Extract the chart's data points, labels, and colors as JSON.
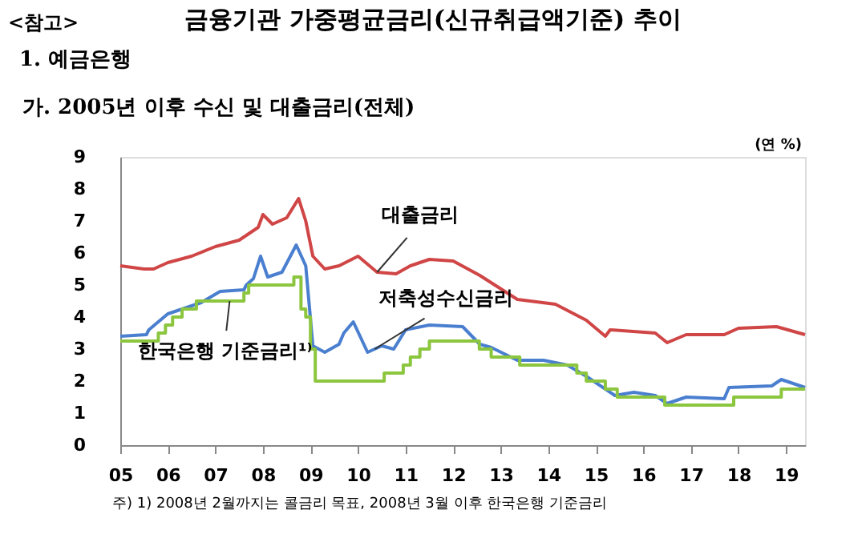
{
  "chart_data": {
    "type": "line",
    "title": "금융기관 가중평균금리(신규취급액기준) 추이",
    "subtitle": "1. 예금은행",
    "ylabel": "(연 %)",
    "annotations": [
      "<참고>",
      "가. 2005년 이후 수신 및 대출금리(전체)",
      {
        "text": "대출금리",
        "x": 2010.4,
        "y": 5.4
      },
      {
        "text": "저축성수신금리",
        "x": 2010.35,
        "y": 3.0
      },
      {
        "text": "한국은행 기준금리¹⁾",
        "x": 2007.3,
        "y": 4.5
      },
      "주) 1) 2008년 2월까지는 콜금리 목표, 2008년 3월 이후 한국은행 기준금리"
    ],
    "xlim": [
      2005,
      2019.4
    ],
    "xticks": [
      {
        "value": 2005,
        "label": "05"
      },
      {
        "value": 2006,
        "label": "06"
      },
      {
        "value": 2007,
        "label": "07"
      },
      {
        "value": 2008,
        "label": "08"
      },
      {
        "value": 2009,
        "label": "09"
      },
      {
        "value": 2010,
        "label": "10"
      },
      {
        "value": 2011,
        "label": "11"
      },
      {
        "value": 2012,
        "label": "12"
      },
      {
        "value": 2013,
        "label": "13"
      },
      {
        "value": 2014,
        "label": "14"
      },
      {
        "value": 2015,
        "label": "15"
      },
      {
        "value": 2016,
        "label": "16"
      },
      {
        "value": 2017,
        "label": "17"
      },
      {
        "value": 2018,
        "label": "18"
      },
      {
        "value": 2019,
        "label": "19"
      }
    ],
    "ylim": [
      0,
      9
    ],
    "yticks": [
      0,
      1,
      2,
      3,
      4,
      5,
      6,
      7,
      8,
      9
    ],
    "grid": false,
    "marker": "none",
    "line_style": "solid",
    "series": [
      {
        "color": "#d04545",
        "x": [
          2005,
          2005.5,
          2005.7,
          2006,
          2006.5,
          2007,
          2007.5,
          2007.9,
          2008,
          2008.2,
          2008.5,
          2008.75,
          2008.9,
          2009.05,
          2009.3,
          2009.6,
          2010,
          2010.4,
          2010.8,
          2011.1,
          2011.5,
          2012,
          2012.56,
          2013.35,
          2014.15,
          2014.8,
          2015.2,
          2015.3,
          2016.25,
          2016.5,
          2016.9,
          2017.7,
          2018,
          2018.8,
          2019.4
        ],
        "values": [
          5.6,
          5.5,
          5.5,
          5.7,
          5.9,
          6.2,
          6.4,
          6.8,
          7.2,
          6.9,
          7.1,
          7.7,
          7.0,
          5.9,
          5.5,
          5.6,
          5.9,
          5.4,
          5.35,
          5.6,
          5.8,
          5.75,
          5.3,
          4.55,
          4.4,
          3.9,
          3.4,
          3.6,
          3.5,
          3.2,
          3.45,
          3.45,
          3.65,
          3.7,
          3.45
        ]
      },
      {
        "color": "#4a7fd0",
        "x": [
          2005,
          2005.55,
          2005.6,
          2006,
          2006.7,
          2007.1,
          2007.6,
          2007.65,
          2007.8,
          2007.95,
          2008.1,
          2008.4,
          2008.7,
          2008.9,
          2009.05,
          2009.3,
          2009.6,
          2009.7,
          2009.9,
          2010.2,
          2010.5,
          2010.75,
          2011,
          2011.5,
          2012.2,
          2012.56,
          2012.8,
          2013.35,
          2013.9,
          2014.4,
          2014.8,
          2015.4,
          2015.8,
          2016.25,
          2016.5,
          2016.9,
          2017.7,
          2017.8,
          2018.7,
          2018.9,
          2019.4
        ],
        "values": [
          3.4,
          3.45,
          3.6,
          4.1,
          4.45,
          4.8,
          4.85,
          5.0,
          5.2,
          5.9,
          5.25,
          5.4,
          6.25,
          5.6,
          3.1,
          2.9,
          3.15,
          3.5,
          3.85,
          2.9,
          3.1,
          3.0,
          3.6,
          3.75,
          3.7,
          3.15,
          3.05,
          2.65,
          2.65,
          2.5,
          2.15,
          1.55,
          1.65,
          1.55,
          1.3,
          1.5,
          1.45,
          1.8,
          1.85,
          2.05,
          1.8
        ]
      },
      {
        "type": "step",
        "color": "#8cc63f",
        "x": [
          2005,
          2005.8,
          2005.95,
          2006.1,
          2006.3,
          2006.6,
          2007.6,
          2007.7,
          2008.65,
          2008.8,
          2008.9,
          2009.0,
          2009.1,
          2010.55,
          2010.95,
          2011.1,
          2011.3,
          2011.5,
          2012.55,
          2012.8,
          2013.4,
          2014.6,
          2014.8,
          2015.2,
          2015.45,
          2016.45,
          2017.9,
          2018.9,
          2019.4
        ],
        "values": [
          3.25,
          3.5,
          3.75,
          4.0,
          4.25,
          4.5,
          4.75,
          5.0,
          5.25,
          4.25,
          4.0,
          3.0,
          2.0,
          2.25,
          2.5,
          2.75,
          3.0,
          3.25,
          3.0,
          2.75,
          2.5,
          2.25,
          2.0,
          1.75,
          1.5,
          1.25,
          1.5,
          1.75,
          1.75
        ]
      }
    ]
  }
}
